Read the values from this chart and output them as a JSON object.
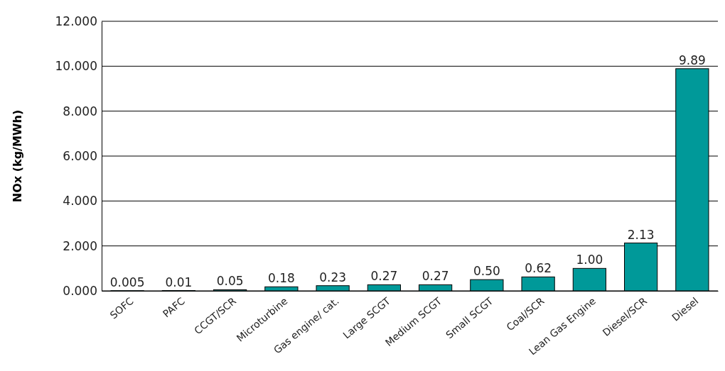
{
  "chart_data": {
    "type": "bar",
    "ylabel": "NOx (kg/MWh)",
    "categories": [
      "SOFC",
      "PAFC",
      "CCGT/SCR",
      "Microturbine",
      "Gas engine/ cat.",
      "Large SCGT",
      "Medium SCGT",
      "Small SCGT",
      "Coal/SCR",
      "Lean Gas Engine",
      "Diesel/SCR",
      "Diesel"
    ],
    "values": [
      0.005,
      0.01,
      0.05,
      0.18,
      0.23,
      0.27,
      0.27,
      0.5,
      0.62,
      1.0,
      2.13,
      9.89
    ],
    "value_labels": [
      "0.005",
      "0.01",
      "0.05",
      "0.18",
      "0.23",
      "0.27",
      "0.27",
      "0.50",
      "0.62",
      "1.00",
      "2.13",
      "9.89"
    ],
    "color": "#009999",
    "ylim": [
      0,
      12
    ],
    "yticks": [
      {
        "value": 0,
        "label": "0.000"
      },
      {
        "value": 2,
        "label": "2.000"
      },
      {
        "value": 4,
        "label": "4.000"
      },
      {
        "value": 6,
        "label": "6.000"
      },
      {
        "value": 8,
        "label": "8.000"
      },
      {
        "value": 10,
        "label": "10.000"
      },
      {
        "value": 12,
        "label": "12.000"
      }
    ],
    "grid": "y"
  }
}
